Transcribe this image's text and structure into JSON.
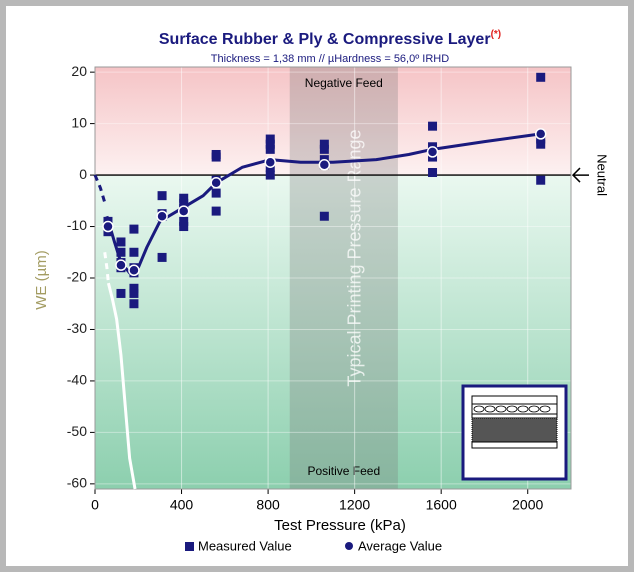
{
  "chart_data": {
    "type": "scatter",
    "title": "Surface Rubber & Ply & Compressive Layer",
    "title_note": "(*)",
    "subtitle": "Thickness = 1,38 mm // µHardness = 56,0º IRHD",
    "x_label": "Test Pressure (kPa)",
    "y_label": "WE (µm)",
    "xlim": [
      0,
      2200
    ],
    "ylim": [
      -61,
      21
    ],
    "xticks": [
      0,
      400,
      800,
      1200,
      1600,
      2000
    ],
    "yticks": [
      20,
      10,
      0,
      -10,
      -20,
      -30,
      -40,
      -50,
      -60
    ],
    "grid": true,
    "legend": "bottom",
    "band": {
      "x": [
        900,
        1400
      ],
      "label": "Typical Printing Pressure Range"
    },
    "annotations": {
      "top": "Negative Feed",
      "bottom": "Positive Feed",
      "right": "Neutral"
    },
    "series": [
      {
        "name": "Measured Value",
        "color": "#1a1a7e",
        "marker": "square",
        "x": [
          60,
          60,
          60,
          120,
          120,
          120,
          120,
          120,
          180,
          180,
          180,
          180,
          180,
          180,
          180,
          310,
          310,
          310,
          310,
          410,
          410,
          410,
          410,
          410,
          560,
          560,
          560,
          560,
          560,
          810,
          810,
          810,
          810,
          810,
          1060,
          1060,
          1060,
          1060,
          1060,
          1560,
          1560,
          1560,
          1560,
          2060,
          2060,
          2060,
          2060
        ],
        "values": [
          -9,
          -10,
          -11,
          -13,
          -15,
          -17,
          -18,
          -23,
          -10.5,
          -15,
          -18,
          -19,
          -22,
          -23,
          -25,
          -4,
          -7.5,
          -8,
          -16,
          -4.5,
          -5.5,
          -6.5,
          -9,
          -10,
          4,
          3.5,
          -1,
          -3.5,
          -7,
          7,
          6,
          5,
          1.5,
          0,
          6,
          5,
          3,
          2,
          -8,
          9.5,
          5.5,
          3.5,
          0.5,
          19,
          7,
          6,
          -1
        ]
      },
      {
        "name": "Average Value",
        "color": "#1a1a7e",
        "marker": "circle",
        "x": [
          60,
          120,
          180,
          310,
          410,
          560,
          810,
          1060,
          1560,
          2060
        ],
        "values": [
          -10,
          -17.5,
          -18.5,
          -8,
          -7,
          -1.5,
          2.5,
          2,
          4.5,
          8
        ]
      }
    ],
    "lines": [
      {
        "color": "#1a1a7e",
        "dash": true,
        "x": [
          0,
          25,
          50
        ],
        "values": [
          0,
          -2.5,
          -6
        ]
      },
      {
        "color": "#1a1a7e",
        "dash": false,
        "x": [
          55,
          90,
          120,
          160,
          200,
          240,
          300,
          400,
          500,
          560,
          680,
          810,
          950,
          1100,
          1300,
          1450,
          1560,
          1800,
          2060
        ],
        "values": [
          -8,
          -13,
          -17,
          -19,
          -18,
          -14,
          -9,
          -6.5,
          -4,
          -1.5,
          1.5,
          3,
          2.5,
          2.5,
          3,
          4,
          5,
          6.5,
          8
        ]
      },
      {
        "color": "#ffffff",
        "dash": true,
        "x": [
          45,
          55,
          62
        ],
        "values": [
          -15,
          -18,
          -21
        ]
      },
      {
        "color": "#ffffff",
        "dash": false,
        "x": [
          62,
          80,
          100,
          120,
          140,
          160,
          185
        ],
        "values": [
          -21,
          -24,
          -28,
          -35,
          -45,
          -55,
          -61
        ]
      }
    ]
  }
}
